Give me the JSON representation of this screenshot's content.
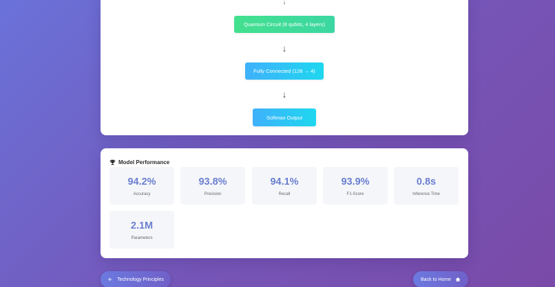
{
  "architecture": {
    "top_arrow": "↓",
    "layers": [
      {
        "label": "Quantum Circuit (8 qubits, 4 layers)",
        "color": "green"
      },
      {
        "label": "Fully Connected (128 → 4)",
        "color": "blue"
      },
      {
        "label": "Softmax Output",
        "color": "blue"
      }
    ],
    "arrows": [
      "↓",
      "↓"
    ]
  },
  "performance": {
    "title": "Model Performance",
    "icon": "trophy-icon",
    "metrics": [
      {
        "value": "94.2%",
        "label": "Accuracy"
      },
      {
        "value": "93.8%",
        "label": "Precision"
      },
      {
        "value": "94.1%",
        "label": "Recall"
      },
      {
        "value": "93.9%",
        "label": "F1-Score"
      },
      {
        "value": "0.8s",
        "label": "Inference Time"
      },
      {
        "value": "2.1M",
        "label": "Parameters"
      }
    ]
  },
  "navigation": {
    "prev_label": "Technology Principles",
    "prev_icon": "arrow-left-icon",
    "home_label": "Back to Home",
    "home_icon": "home-icon"
  },
  "colors": {
    "accent": "#6a7fd0",
    "green_layer": "#43e08f",
    "blue_layer": "#3fb1fb",
    "background_start": "#6a72d9",
    "background_end": "#7a4aa8"
  }
}
